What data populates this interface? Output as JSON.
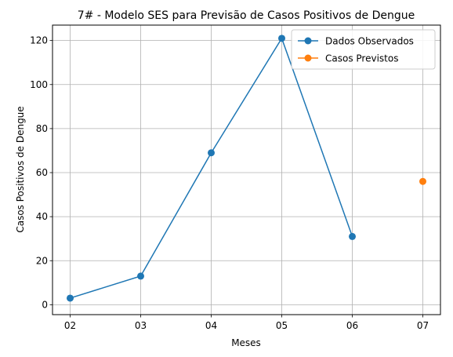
{
  "chart_data": {
    "type": "line",
    "title": "7# - Modelo SES para Previsão de Casos Positivos de Dengue",
    "xlabel": "Meses",
    "ylabel": "Casos Positivos de Dengue",
    "categories": [
      "02",
      "03",
      "04",
      "05",
      "06",
      "07"
    ],
    "x_range": [
      "02",
      "07"
    ],
    "ylim": [
      -4.5,
      127
    ],
    "yticks": [
      0,
      20,
      40,
      60,
      80,
      100,
      120
    ],
    "grid": true,
    "legend_position": "top-right",
    "series": [
      {
        "name": "Dados Observados",
        "color": "#1f77b4",
        "marker": "circle",
        "line": true,
        "points": [
          {
            "x": "02",
            "y": 3
          },
          {
            "x": "03",
            "y": 13
          },
          {
            "x": "04",
            "y": 69
          },
          {
            "x": "05",
            "y": 121
          },
          {
            "x": "06",
            "y": 31
          }
        ]
      },
      {
        "name": "Casos Previstos",
        "color": "#ff7f0e",
        "marker": "circle",
        "line": true,
        "points": [
          {
            "x": "07",
            "y": 56
          }
        ]
      }
    ]
  }
}
